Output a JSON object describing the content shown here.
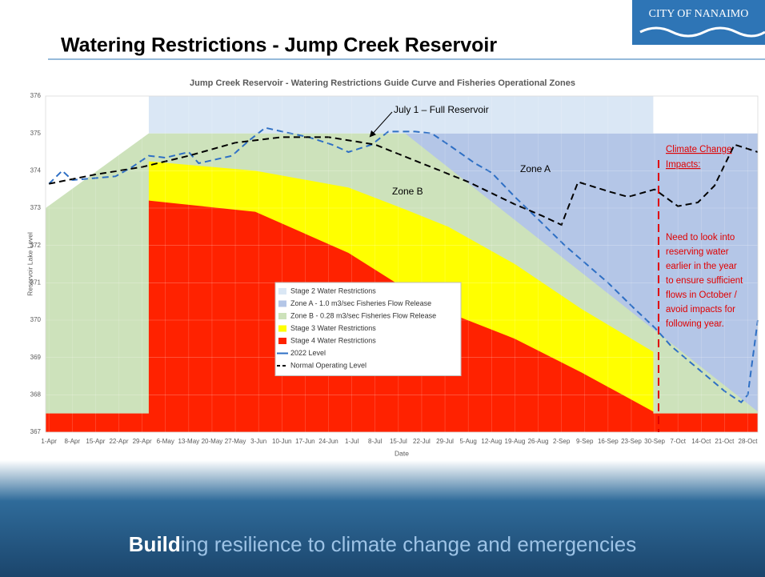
{
  "slide": {
    "title": "Watering Restrictions - Jump Creek Reservoir",
    "logo": "CITY OF NANAIMO",
    "footer_bold": "Build",
    "footer_rest": "ing resilience to climate change and emergencies"
  },
  "chart_data": {
    "type": "area",
    "title": "Jump Creek Reservoir - Watering Restrictions Guide Curve and Fisheries Operational Zones",
    "y_label": "Reservoir Lake Level",
    "x_label": "Date",
    "xlim": [
      -1,
      213
    ],
    "ylim": [
      367,
      376
    ],
    "yticks": [
      367,
      368,
      369,
      370,
      371,
      372,
      373,
      374,
      375,
      376
    ],
    "xticks": [
      {
        "value": 0,
        "label": "1-Apr"
      },
      {
        "value": 7,
        "label": "8-Apr"
      },
      {
        "value": 14,
        "label": "15-Apr"
      },
      {
        "value": 21,
        "label": "22-Apr"
      },
      {
        "value": 28,
        "label": "29-Apr"
      },
      {
        "value": 35,
        "label": "6-May"
      },
      {
        "value": 42,
        "label": "13-May"
      },
      {
        "value": 49,
        "label": "20-May"
      },
      {
        "value": 56,
        "label": "27-May"
      },
      {
        "value": 63,
        "label": "3-Jun"
      },
      {
        "value": 70,
        "label": "10-Jun"
      },
      {
        "value": 77,
        "label": "17-Jun"
      },
      {
        "value": 84,
        "label": "24-Jun"
      },
      {
        "value": 91,
        "label": "1-Jul"
      },
      {
        "value": 98,
        "label": "8-Jul"
      },
      {
        "value": 105,
        "label": "15-Jul"
      },
      {
        "value": 112,
        "label": "22-Jul"
      },
      {
        "value": 119,
        "label": "29-Jul"
      },
      {
        "value": 126,
        "label": "5-Aug"
      },
      {
        "value": 133,
        "label": "12-Aug"
      },
      {
        "value": 140,
        "label": "19-Aug"
      },
      {
        "value": 147,
        "label": "26-Aug"
      },
      {
        "value": 154,
        "label": "2-Sep"
      },
      {
        "value": 161,
        "label": "9-Sep"
      },
      {
        "value": 168,
        "label": "16-Sep"
      },
      {
        "value": 175,
        "label": "23-Sep"
      },
      {
        "value": 182,
        "label": "30-Sep"
      },
      {
        "value": 189,
        "label": "7-Oct"
      },
      {
        "value": 196,
        "label": "14-Oct"
      },
      {
        "value": 203,
        "label": "21-Oct"
      },
      {
        "value": 210,
        "label": "28-Oct"
      }
    ],
    "grid": true,
    "series": [
      {
        "name": "Stage 2 Water Restrictions",
        "kind": "area",
        "color": "#dae7f5",
        "x": [
          30,
          181.6
        ],
        "values": [
          376,
          376
        ]
      },
      {
        "name": "Zone A - 1.0 m3/sec Fisheries Flow Release",
        "kind": "area",
        "color": "#b4c6e7",
        "x": [
          30,
          213
        ],
        "values": [
          375,
          375
        ]
      },
      {
        "name": "Zone B - 0.28 m3/sec Fisheries Flow Release",
        "kind": "area",
        "color": "#cde2bb",
        "x": [
          -1,
          30,
          107,
          213
        ],
        "values": [
          373,
          375,
          375,
          367.55
        ]
      },
      {
        "name": "Stage 3 Water Restrictions",
        "kind": "area",
        "color": "#ffff00",
        "x": [
          30,
          62,
          90,
          106,
          120,
          140,
          160,
          181.6
        ],
        "values": [
          374.25,
          374.0,
          373.55,
          373.0,
          372.5,
          371.5,
          370.3,
          369.15
        ]
      },
      {
        "name": "Stage 4 Water Restrictions",
        "kind": "area",
        "color": "#ff2200",
        "x": [
          -1,
          30,
          30,
          62,
          90,
          106,
          120,
          140,
          160,
          181.6,
          181.6,
          213
        ],
        "values": [
          367.5,
          367.5,
          373.2,
          372.9,
          371.8,
          370.9,
          370.2,
          369.5,
          368.6,
          367.55,
          367.5,
          367.5
        ]
      },
      {
        "name": "2022 Level",
        "kind": "line",
        "dash": true,
        "color": "#2e6fc4",
        "x": [
          0,
          4,
          7,
          20,
          25,
          30,
          35,
          42,
          45,
          55,
          60,
          65,
          70,
          78,
          85,
          90,
          97,
          102,
          110,
          115,
          120,
          128,
          133,
          140,
          147,
          155,
          168,
          176,
          182,
          187,
          195,
          203,
          208,
          210,
          213
        ],
        "values": [
          373.65,
          374.0,
          373.75,
          373.85,
          374.1,
          374.4,
          374.35,
          374.5,
          374.2,
          374.4,
          374.8,
          375.15,
          375.05,
          374.9,
          374.7,
          374.5,
          374.7,
          375.05,
          375.05,
          375.0,
          374.7,
          374.2,
          373.95,
          373.3,
          372.7,
          372.0,
          371.0,
          370.3,
          369.8,
          369.3,
          368.7,
          368.1,
          367.8,
          368.0,
          370.0
        ]
      },
      {
        "name": "Normal Operating Level",
        "kind": "line",
        "dash": true,
        "color": "#000000",
        "x": [
          0,
          14,
          28,
          42,
          56,
          70,
          84,
          98,
          112,
          126,
          140,
          148,
          154,
          159,
          168,
          174,
          182,
          189,
          195,
          200,
          206,
          213
        ],
        "values": [
          373.65,
          373.9,
          374.1,
          374.4,
          374.75,
          374.9,
          374.9,
          374.7,
          374.2,
          373.7,
          373.1,
          372.8,
          372.55,
          373.7,
          373.45,
          373.3,
          373.5,
          373.05,
          373.15,
          373.6,
          374.7,
          374.5
        ]
      }
    ],
    "annotations": {
      "full_reservoir": "July 1 – Full Reservoir",
      "zone_a": "Zone A",
      "zone_b": "Zone B",
      "climate_heading": [
        "Climate Change",
        "Impacts:"
      ],
      "climate_note": [
        "Need to look into",
        "reserving water",
        "earlier in the year",
        "to ensure sufficient",
        "flows in October /",
        "avoid impacts for",
        "following year."
      ]
    }
  }
}
